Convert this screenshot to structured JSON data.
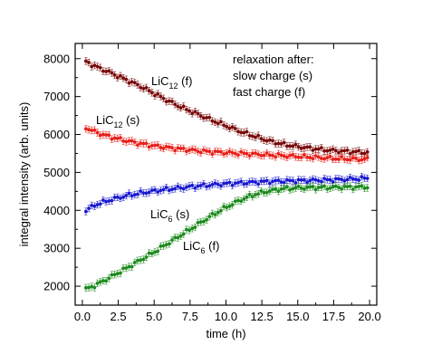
{
  "chart_data": {
    "type": "scatter",
    "xlabel": "time (h)",
    "ylabel": "integral intensity (arb. units)",
    "xlim": [
      -0.5,
      20.5
    ],
    "ylim": [
      1500,
      8400
    ],
    "xticks": [
      0.0,
      2.5,
      5.0,
      7.5,
      10.0,
      12.5,
      15.0,
      17.5,
      20.0
    ],
    "xtick_labels": [
      "0.0",
      "2.5",
      "5.0",
      "7.5",
      "10.0",
      "12.5",
      "15.0",
      "17.5",
      "20.0"
    ],
    "yticks": [
      2000,
      3000,
      4000,
      5000,
      6000,
      7000,
      8000
    ],
    "ytick_labels": [
      "2000",
      "3000",
      "4000",
      "5000",
      "6000",
      "7000",
      "8000"
    ],
    "grid": false,
    "legend": {
      "position": "top-right",
      "lines": [
        "relaxation after:",
        "slow charge (s)",
        "fast charge (f)"
      ]
    },
    "series": [
      {
        "label_base": "LiC",
        "label_sub": "12",
        "label_suffix": " (f)",
        "color": "#7a0a0a",
        "x": [
          0.25,
          1.0,
          2.0,
          3.0,
          4.0,
          5.0,
          6.0,
          7.0,
          8.0,
          9.0,
          10.0,
          11.0,
          12.0,
          13.0,
          14.0,
          15.0,
          16.0,
          17.0,
          18.0,
          19.0,
          20.0
        ],
        "y": [
          7920,
          7780,
          7620,
          7450,
          7280,
          7080,
          6880,
          6700,
          6540,
          6380,
          6230,
          6080,
          5950,
          5830,
          5740,
          5680,
          5630,
          5590,
          5560,
          5540,
          5520
        ]
      },
      {
        "label_base": "LiC",
        "label_sub": "12",
        "label_suffix": " (s)",
        "color": "#e8201a",
        "x": [
          0.25,
          1.0,
          2.0,
          3.0,
          4.0,
          5.0,
          6.0,
          7.0,
          8.0,
          9.0,
          10.0,
          11.0,
          12.0,
          13.0,
          14.0,
          15.0,
          16.0,
          17.0,
          18.0,
          19.0,
          20.0
        ],
        "y": [
          6180,
          6050,
          5930,
          5840,
          5760,
          5700,
          5650,
          5610,
          5570,
          5540,
          5520,
          5500,
          5480,
          5460,
          5440,
          5420,
          5400,
          5380,
          5360,
          5350,
          5340
        ]
      },
      {
        "label_base": "LiC",
        "label_sub": "6",
        "label_suffix": " (s)",
        "color": "#1a1ad0",
        "x": [
          0.25,
          1.0,
          2.0,
          3.0,
          4.0,
          5.0,
          6.0,
          7.0,
          8.0,
          9.0,
          10.0,
          11.0,
          12.0,
          13.0,
          14.0,
          15.0,
          16.0,
          17.0,
          18.0,
          19.0,
          20.0
        ],
        "y": [
          4000,
          4160,
          4280,
          4380,
          4450,
          4510,
          4560,
          4600,
          4640,
          4670,
          4700,
          4720,
          4740,
          4760,
          4770,
          4780,
          4790,
          4800,
          4810,
          4830,
          4850
        ]
      },
      {
        "label_base": "LiC",
        "label_sub": "6",
        "label_suffix": " (f)",
        "color": "#1c8a1c",
        "x": [
          0.25,
          1.0,
          2.0,
          3.0,
          4.0,
          5.0,
          6.0,
          7.0,
          8.0,
          9.0,
          10.0,
          11.0,
          12.0,
          13.0,
          14.0,
          15.0,
          16.0,
          17.0,
          18.0,
          19.0,
          20.0
        ],
        "y": [
          1920,
          2040,
          2250,
          2460,
          2680,
          2900,
          3140,
          3380,
          3620,
          3860,
          4080,
          4270,
          4420,
          4510,
          4570,
          4590,
          4600,
          4600,
          4610,
          4610,
          4620
        ]
      }
    ]
  }
}
